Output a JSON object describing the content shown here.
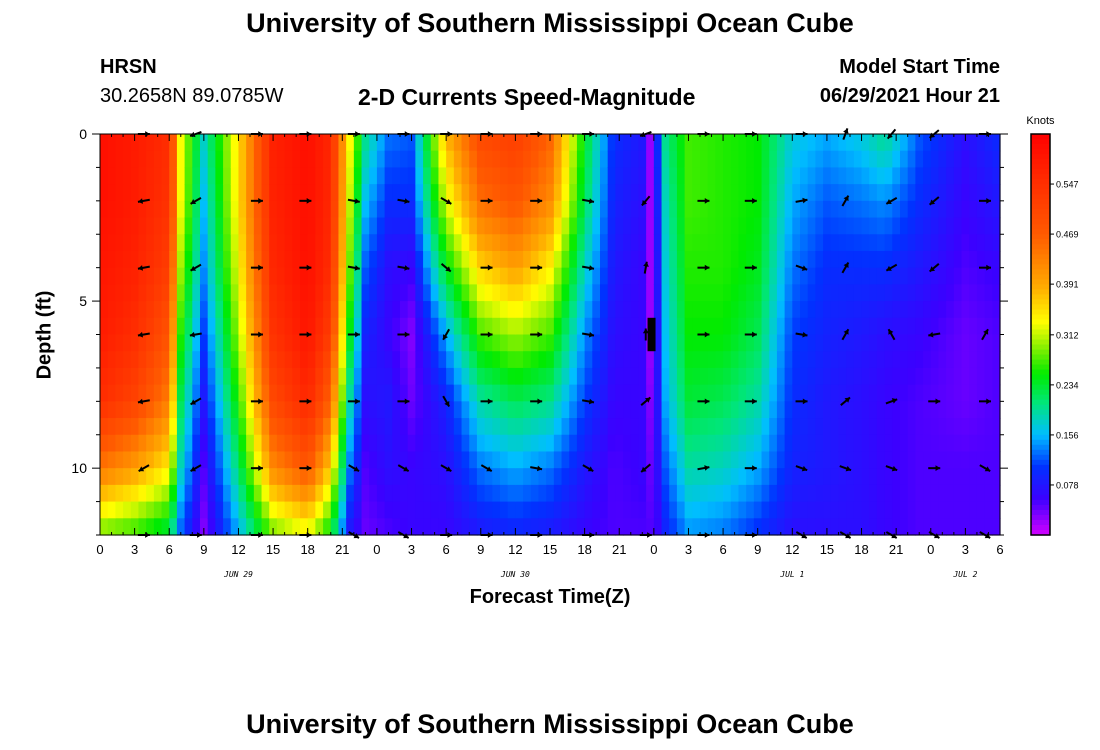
{
  "header": {
    "title": "University of Southern Mississippi Ocean Cube",
    "station": "HRSN",
    "coordinates": "30.2658N  89.0785W",
    "subtitle": "2-D Currents Speed-Magnitude",
    "model_label": "Model Start Time",
    "model_time": "06/29/2021 Hour 21"
  },
  "footer": {
    "title": "University of Southern Mississippi Ocean Cube"
  },
  "chart_data": {
    "type": "heatmap",
    "title": "2-D Currents Speed-Magnitude",
    "xlabel": "Forecast Time(Z)",
    "ylabel": "Depth (ft)",
    "x_tick_labels": [
      "0",
      "3",
      "6",
      "9",
      "12",
      "15",
      "18",
      "21",
      "0",
      "3",
      "6",
      "9",
      "12",
      "15",
      "18",
      "21",
      "0",
      "3",
      "6",
      "9",
      "12",
      "15",
      "18",
      "21",
      "0",
      "3",
      "6"
    ],
    "date_labels": [
      {
        "text": "JUN 29",
        "hour": 12
      },
      {
        "text": "JUN 30",
        "hour": 36
      },
      {
        "text": "JUL 1",
        "hour": 60
      },
      {
        "text": "JUL 2",
        "hour": 75
      }
    ],
    "xlim": [
      0,
      78
    ],
    "ylim": [
      0,
      12
    ],
    "y_tick_labels": [
      "0",
      "5",
      "10"
    ],
    "colorbar": {
      "label": "Knots",
      "ticks": [
        "0.547",
        "0.469",
        "0.391",
        "0.312",
        "0.234",
        "0.156",
        "0.078"
      ],
      "range": [
        0.0,
        0.625
      ]
    },
    "depths": [
      0,
      2,
      4,
      6,
      8,
      10,
      12
    ],
    "profile_times": [
      0,
      3,
      6,
      7,
      9,
      12,
      15,
      18,
      20,
      21.5,
      23,
      25,
      27,
      30,
      33,
      36,
      39,
      42,
      44.5,
      47,
      47.7,
      48.2,
      49,
      51,
      54,
      57,
      60,
      63,
      66,
      68,
      71,
      75,
      78
    ],
    "profiles": [
      [
        0.6,
        0.6,
        0.59,
        0.58,
        0.55,
        0.44,
        0.28
      ],
      [
        0.58,
        0.58,
        0.57,
        0.55,
        0.51,
        0.4,
        0.26
      ],
      [
        0.55,
        0.54,
        0.52,
        0.48,
        0.43,
        0.34,
        0.22
      ],
      [
        0.33,
        0.33,
        0.3,
        0.26,
        0.22,
        0.18,
        0.12
      ],
      [
        0.18,
        0.16,
        0.14,
        0.11,
        0.08,
        0.05,
        0.03
      ],
      [
        0.35,
        0.35,
        0.33,
        0.3,
        0.26,
        0.21,
        0.15
      ],
      [
        0.57,
        0.57,
        0.56,
        0.54,
        0.5,
        0.42,
        0.28
      ],
      [
        0.6,
        0.6,
        0.6,
        0.59,
        0.56,
        0.48,
        0.32
      ],
      [
        0.56,
        0.56,
        0.55,
        0.52,
        0.46,
        0.36,
        0.24
      ],
      [
        0.35,
        0.33,
        0.3,
        0.26,
        0.2,
        0.14,
        0.08
      ],
      [
        0.2,
        0.16,
        0.12,
        0.09,
        0.07,
        0.05,
        0.04
      ],
      [
        0.13,
        0.1,
        0.07,
        0.06,
        0.08,
        0.07,
        0.05
      ],
      [
        0.12,
        0.1,
        0.06,
        0.03,
        0.04,
        0.06,
        0.06
      ],
      [
        0.38,
        0.32,
        0.24,
        0.15,
        0.09,
        0.07,
        0.06
      ],
      [
        0.5,
        0.45,
        0.36,
        0.27,
        0.19,
        0.13,
        0.08
      ],
      [
        0.52,
        0.48,
        0.4,
        0.3,
        0.22,
        0.15,
        0.09
      ],
      [
        0.46,
        0.42,
        0.34,
        0.27,
        0.2,
        0.13,
        0.08
      ],
      [
        0.24,
        0.22,
        0.18,
        0.14,
        0.11,
        0.08,
        0.06
      ],
      [
        0.1,
        0.09,
        0.08,
        0.07,
        0.06,
        0.05,
        0.05
      ],
      [
        0.08,
        0.07,
        0.06,
        0.06,
        0.06,
        0.06,
        0.05
      ],
      [
        0.02,
        0.02,
        0.02,
        0.02,
        0.03,
        0.04,
        0.05
      ],
      [
        0.08,
        0.07,
        0.06,
        0.06,
        0.06,
        0.06,
        0.05
      ],
      [
        0.2,
        0.18,
        0.17,
        0.16,
        0.15,
        0.12,
        0.09
      ],
      [
        0.27,
        0.27,
        0.26,
        0.25,
        0.23,
        0.19,
        0.14
      ],
      [
        0.26,
        0.26,
        0.26,
        0.25,
        0.22,
        0.18,
        0.13
      ],
      [
        0.25,
        0.25,
        0.24,
        0.22,
        0.19,
        0.15,
        0.1
      ],
      [
        0.17,
        0.15,
        0.13,
        0.11,
        0.1,
        0.09,
        0.07
      ],
      [
        0.15,
        0.12,
        0.1,
        0.09,
        0.08,
        0.08,
        0.07
      ],
      [
        0.17,
        0.13,
        0.1,
        0.08,
        0.07,
        0.07,
        0.07
      ],
      [
        0.2,
        0.14,
        0.1,
        0.07,
        0.06,
        0.06,
        0.06
      ],
      [
        0.12,
        0.1,
        0.08,
        0.06,
        0.05,
        0.05,
        0.05
      ],
      [
        0.07,
        0.06,
        0.05,
        0.04,
        0.04,
        0.05,
        0.05
      ],
      [
        0.1,
        0.08,
        0.06,
        0.05,
        0.05,
        0.05,
        0.05
      ]
    ],
    "vector_times": [
      3.8,
      8.3,
      13.6,
      17.8,
      22,
      26.3,
      30,
      33.5,
      37.8,
      42.3,
      47.3,
      52.3,
      56.4,
      60.8,
      64.6,
      68.6,
      72.3,
      76.7
    ],
    "vector_depths": [
      0,
      2,
      4,
      6,
      8,
      10,
      12
    ],
    "vector_angles_deg": [
      [
        0,
        -160,
        0,
        0,
        0,
        0,
        0,
        0,
        0,
        0,
        -160,
        0,
        0,
        0,
        70,
        -130,
        -140,
        0
      ],
      [
        -170,
        -150,
        0,
        0,
        -10,
        -10,
        -30,
        0,
        0,
        -10,
        -130,
        0,
        0,
        10,
        60,
        -150,
        -140,
        0
      ],
      [
        -170,
        -150,
        0,
        0,
        -10,
        -10,
        -40,
        0,
        0,
        -10,
        80,
        0,
        0,
        -20,
        60,
        -150,
        -140,
        0
      ],
      [
        -170,
        -170,
        0,
        0,
        0,
        0,
        -120,
        0,
        0,
        -10,
        90,
        0,
        0,
        -10,
        60,
        120,
        -170,
        60
      ],
      [
        -170,
        -150,
        0,
        0,
        0,
        0,
        -60,
        0,
        0,
        -10,
        40,
        0,
        0,
        0,
        40,
        20,
        0,
        0
      ],
      [
        -150,
        -150,
        0,
        0,
        -30,
        -30,
        -30,
        -30,
        -10,
        -30,
        -140,
        10,
        0,
        -20,
        -20,
        -20,
        0,
        -30
      ],
      [
        0,
        0,
        0,
        0,
        -30,
        -30,
        0,
        0,
        0,
        0,
        0,
        0,
        0,
        -30,
        -30,
        -30,
        -30,
        -30
      ]
    ],
    "masked_cell": {
      "time": 47.8,
      "depth_range": [
        5.5,
        6.5
      ]
    }
  }
}
